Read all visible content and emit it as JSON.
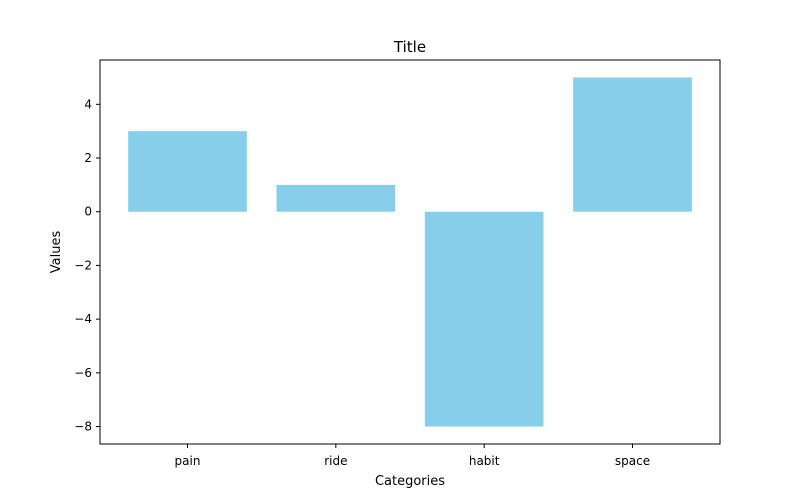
{
  "chart_data": {
    "type": "bar",
    "title": "Title",
    "xlabel": "Categories",
    "ylabel": "Values",
    "categories": [
      "pain",
      "ride",
      "habit",
      "space"
    ],
    "values": [
      3,
      1,
      -8,
      5
    ],
    "ylim": [
      -8.65,
      5.65
    ],
    "yticks": [
      -8,
      -6,
      -4,
      -2,
      0,
      2,
      4
    ],
    "ytick_labels": [
      "−8",
      "−6",
      "−4",
      "−2",
      "0",
      "2",
      "4"
    ],
    "grid": false,
    "bar_color": "#87ceeb"
  }
}
